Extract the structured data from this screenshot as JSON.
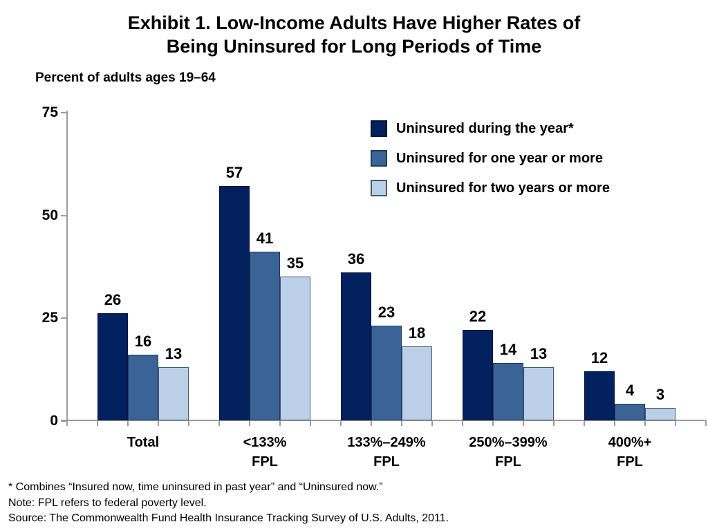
{
  "title": {
    "line1": "Exhibit 1. Low-Income Adults Have Higher Rates of",
    "line2": "Being Uninsured for Long Periods of Time"
  },
  "subtitle": "Percent of adults ages 19–64",
  "chart_data": {
    "type": "bar",
    "categories": [
      "Total",
      "<133%\nFPL",
      "133%–249%\nFPL",
      "250%–399%\nFPL",
      "400%+\nFPL"
    ],
    "series": [
      {
        "name": "Uninsured during the year*",
        "color": "#04215f",
        "border_color": "#02123b",
        "values": [
          26,
          57,
          36,
          22,
          12
        ]
      },
      {
        "name": "Uninsured for one year or more",
        "color": "#3a6496",
        "border_color": "#1c3a63",
        "values": [
          16,
          41,
          23,
          14,
          4
        ]
      },
      {
        "name": "Uninsured for two years or more",
        "color": "#bccfe8",
        "border_color": "#46566e",
        "values": [
          13,
          35,
          18,
          13,
          3
        ]
      }
    ],
    "title": "Exhibit 1. Low-Income Adults Have Higher Rates of Being Uninsured for Long Periods of Time",
    "xlabel": "",
    "ylabel": "Percent of adults ages 19–64",
    "yticks": [
      0,
      25,
      50,
      75
    ],
    "ylim": [
      0,
      75
    ],
    "grid": false,
    "legend_position": "top-right",
    "axis_color": "#9b9b9b"
  },
  "footnotes": [
    "* Combines “Insured now, time uninsured in past year” and “Uninsured now.”",
    "Note: FPL refers to federal poverty level.",
    "Source: The Commonwealth Fund Health Insurance Tracking Survey of U.S. Adults, 2011."
  ]
}
